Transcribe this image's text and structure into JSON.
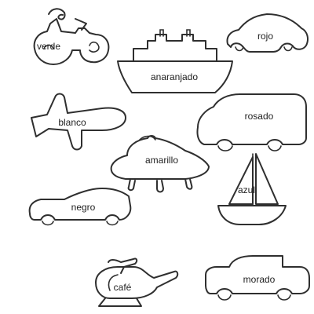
{
  "vehicles": [
    {
      "icon": "motorcycle-icon",
      "label": "verde"
    },
    {
      "icon": "ship-icon",
      "label": "anaranjado"
    },
    {
      "icon": "car-icon",
      "label": "rojo"
    },
    {
      "icon": "airplane-icon",
      "label": "blanco"
    },
    {
      "icon": "van-icon",
      "label": "rosado"
    },
    {
      "icon": "ufo-icon",
      "label": "amarillo"
    },
    {
      "icon": "sailboat-icon",
      "label": "azul"
    },
    {
      "icon": "race-car-icon",
      "label": "negro"
    },
    {
      "icon": "helicopter-icon",
      "label": "café"
    },
    {
      "icon": "pickup-truck-icon",
      "label": "morado"
    }
  ]
}
